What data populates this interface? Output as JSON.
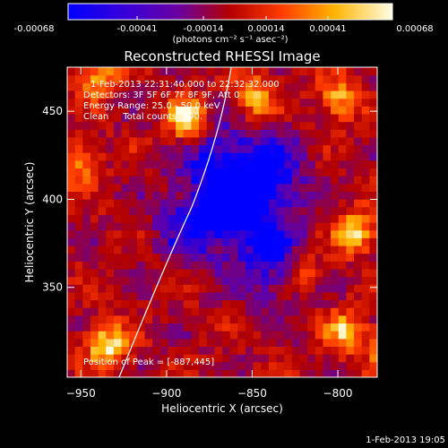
{
  "colorbar": {
    "ticks": [
      "-0.00068",
      "-0.00041",
      "-0.00014",
      "0.00014",
      "0.00041",
      "0.00068"
    ],
    "units": "(photons cm⁻² s⁻¹ asec⁻²)"
  },
  "annotation": {
    "time": "1-Feb-2013 22:31:40.000 to 22:32:32.000",
    "detectors": "Detectors: 3F 5F 6F 7F 8F 9F, Att 0",
    "energy": "Energy Range: 25.0 - 50.0 keV",
    "clean": "Clean     Total counts: 990.",
    "peak": "Position of Peak = [-887,445]"
  },
  "footer_date": "1-Feb-2013 19:05",
  "chart_data": {
    "type": "heatmap",
    "title": "Reconstructed RHESSI Image",
    "xlabel": "Heliocentric X (arcsec)",
    "ylabel": "Heliocentric Y (arcsec)",
    "xlim": [
      -958,
      -777
    ],
    "ylim": [
      299,
      475
    ],
    "x_ticks": [
      -950,
      -900,
      -850,
      -800
    ],
    "y_ticks": [
      350,
      400,
      450
    ],
    "colormap": [
      "#0000ff",
      "#5a00b0",
      "#b40000",
      "#ff3c00",
      "#ffb400",
      "#ffffe6"
    ],
    "peak": {
      "x": -887,
      "y": 445
    },
    "bright_sources": [
      {
        "x": -888,
        "y": 445,
        "level": 1.0
      },
      {
        "x": -935,
        "y": 317,
        "level": 0.9
      },
      {
        "x": -790,
        "y": 382,
        "level": 0.85
      },
      {
        "x": -850,
        "y": 458,
        "level": 0.75
      },
      {
        "x": -800,
        "y": 458,
        "level": 0.7
      },
      {
        "x": -940,
        "y": 470,
        "level": 0.7
      },
      {
        "x": -795,
        "y": 325,
        "level": 0.7
      },
      {
        "x": -770,
        "y": 315,
        "level": 0.65
      },
      {
        "x": -952,
        "y": 420,
        "level": 0.6
      },
      {
        "x": -820,
        "y": 360,
        "level": 0.55
      }
    ],
    "dark_regions": [
      {
        "x": -858,
        "y": 398,
        "level": 0.12
      },
      {
        "x": -838,
        "y": 365,
        "level": 0.18
      },
      {
        "x": -838,
        "y": 415,
        "level": 0.2
      },
      {
        "x": -885,
        "y": 385,
        "level": 0.22
      },
      {
        "x": -870,
        "y": 425,
        "level": 0.22
      }
    ]
  }
}
